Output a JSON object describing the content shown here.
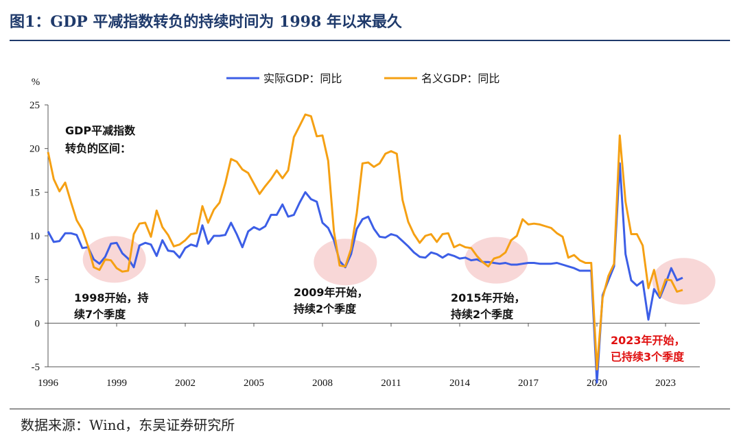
{
  "header": {
    "title": "图1：GDP 平减指数转负的持续时间为 1998 年以来最久"
  },
  "footer": {
    "source": "数据来源：Wind，东吴证券研究所"
  },
  "colors": {
    "real": "#3c5ee6",
    "nominal": "#f5a013",
    "highlight": "#f6c9c9",
    "title": "#1f3a6b",
    "red_text": "#e01010"
  },
  "chart_data": {
    "type": "line",
    "ylabel": "%",
    "ylim": [
      -5,
      25
    ],
    "yticks": [
      -5,
      0,
      5,
      10,
      15,
      20,
      25
    ],
    "xlim": [
      1996.0,
      2024.5
    ],
    "xticks": [
      1996,
      1999,
      2002,
      2005,
      2008,
      2011,
      2014,
      2017,
      2020,
      2023
    ],
    "xtick_labels": [
      "1996",
      "1999",
      "2002",
      "2005",
      "2008",
      "2011",
      "2014",
      "2017",
      "2020",
      "2023"
    ],
    "grid": false,
    "legend_position": "top-center",
    "series": [
      {
        "name": "实际GDP：同比",
        "color": "#3c5ee6",
        "x": [
          1996.0,
          1996.25,
          1996.5,
          1996.75,
          1997.0,
          1997.25,
          1997.5,
          1997.75,
          1998.0,
          1998.25,
          1998.5,
          1998.75,
          1999.0,
          1999.25,
          1999.5,
          1999.75,
          2000.0,
          2000.25,
          2000.5,
          2000.75,
          2001.0,
          2001.25,
          2001.5,
          2001.75,
          2002.0,
          2002.25,
          2002.5,
          2002.75,
          2003.0,
          2003.25,
          2003.5,
          2003.75,
          2004.0,
          2004.25,
          2004.5,
          2004.75,
          2005.0,
          2005.25,
          2005.5,
          2005.75,
          2006.0,
          2006.25,
          2006.5,
          2006.75,
          2007.0,
          2007.25,
          2007.5,
          2007.75,
          2008.0,
          2008.25,
          2008.5,
          2008.75,
          2009.0,
          2009.25,
          2009.5,
          2009.75,
          2010.0,
          2010.25,
          2010.5,
          2010.75,
          2011.0,
          2011.25,
          2011.5,
          2011.75,
          2012.0,
          2012.25,
          2012.5,
          2012.75,
          2013.0,
          2013.25,
          2013.5,
          2013.75,
          2014.0,
          2014.25,
          2014.5,
          2014.75,
          2015.0,
          2015.25,
          2015.5,
          2015.75,
          2016.0,
          2016.25,
          2016.5,
          2016.75,
          2017.0,
          2017.25,
          2017.5,
          2017.75,
          2018.0,
          2018.25,
          2018.5,
          2018.75,
          2019.0,
          2019.25,
          2019.5,
          2019.75,
          2020.0,
          2020.25,
          2020.5,
          2020.75,
          2021.0,
          2021.25,
          2021.5,
          2021.75,
          2022.0,
          2022.25,
          2022.5,
          2022.75,
          2023.0,
          2023.25,
          2023.5,
          2023.75
        ],
        "values": [
          10.5,
          9.3,
          9.4,
          10.3,
          10.3,
          10.1,
          8.6,
          8.7,
          7.3,
          6.8,
          7.6,
          9.1,
          9.2,
          8.0,
          7.4,
          6.4,
          8.9,
          9.2,
          9.0,
          7.7,
          9.5,
          8.3,
          8.2,
          7.5,
          8.6,
          9.0,
          8.8,
          11.2,
          9.1,
          10.0,
          10.0,
          10.1,
          11.5,
          10.2,
          8.7,
          10.5,
          11.0,
          10.7,
          11.1,
          12.4,
          12.4,
          13.6,
          12.2,
          12.4,
          13.8,
          15.0,
          14.2,
          13.9,
          11.5,
          10.9,
          9.5,
          7.1,
          6.4,
          7.9,
          10.8,
          11.9,
          12.2,
          10.8,
          9.9,
          9.8,
          10.2,
          10.0,
          9.4,
          8.8,
          8.1,
          7.6,
          7.5,
          8.1,
          7.9,
          7.5,
          7.9,
          7.7,
          7.4,
          7.5,
          7.2,
          7.3,
          7.0,
          7.0,
          6.9,
          6.8,
          6.9,
          6.7,
          6.7,
          6.8,
          6.9,
          6.9,
          6.8,
          6.8,
          6.8,
          6.9,
          6.7,
          6.5,
          6.3,
          6.0,
          6.0,
          6.0,
          -6.8,
          3.2,
          4.9,
          6.5,
          18.3,
          7.9,
          4.9,
          4.3,
          4.8,
          0.4,
          3.9,
          2.9,
          4.5,
          6.3,
          4.9,
          5.2
        ]
      },
      {
        "name": "名义GDP：同比",
        "color": "#f5a013",
        "x": [
          1996.0,
          1996.25,
          1996.5,
          1996.75,
          1997.0,
          1997.25,
          1997.5,
          1997.75,
          1998.0,
          1998.25,
          1998.5,
          1998.75,
          1999.0,
          1999.25,
          1999.5,
          1999.75,
          2000.0,
          2000.25,
          2000.5,
          2000.75,
          2001.0,
          2001.25,
          2001.5,
          2001.75,
          2002.0,
          2002.25,
          2002.5,
          2002.75,
          2003.0,
          2003.25,
          2003.5,
          2003.75,
          2004.0,
          2004.25,
          2004.5,
          2004.75,
          2005.0,
          2005.25,
          2005.5,
          2005.75,
          2006.0,
          2006.25,
          2006.5,
          2006.75,
          2007.0,
          2007.25,
          2007.5,
          2007.75,
          2008.0,
          2008.25,
          2008.5,
          2008.75,
          2009.0,
          2009.25,
          2009.5,
          2009.75,
          2010.0,
          2010.25,
          2010.5,
          2010.75,
          2011.0,
          2011.25,
          2011.5,
          2011.75,
          2012.0,
          2012.25,
          2012.5,
          2012.75,
          2013.0,
          2013.25,
          2013.5,
          2013.75,
          2014.0,
          2014.25,
          2014.5,
          2014.75,
          2015.0,
          2015.25,
          2015.5,
          2015.75,
          2016.0,
          2016.25,
          2016.5,
          2016.75,
          2017.0,
          2017.25,
          2017.5,
          2017.75,
          2018.0,
          2018.25,
          2018.5,
          2018.75,
          2019.0,
          2019.25,
          2019.5,
          2019.75,
          2020.0,
          2020.25,
          2020.5,
          2020.75,
          2021.0,
          2021.25,
          2021.5,
          2021.75,
          2022.0,
          2022.25,
          2022.5,
          2022.75,
          2023.0,
          2023.25,
          2023.5,
          2023.75
        ],
        "values": [
          19.6,
          16.5,
          15.1,
          16.1,
          13.9,
          11.8,
          10.7,
          8.8,
          6.4,
          6.1,
          7.3,
          7.2,
          6.3,
          5.9,
          6.0,
          10.2,
          11.4,
          11.5,
          9.9,
          12.9,
          11.0,
          10.1,
          8.8,
          9.0,
          9.5,
          10.2,
          10.3,
          13.4,
          11.5,
          13.0,
          13.8,
          16.0,
          18.8,
          18.5,
          17.6,
          17.2,
          16.0,
          14.8,
          15.7,
          16.5,
          17.5,
          16.6,
          17.5,
          21.3,
          22.6,
          23.9,
          23.7,
          21.4,
          21.5,
          18.6,
          10.5,
          6.6,
          6.5,
          8.5,
          12.6,
          18.3,
          18.4,
          17.9,
          18.3,
          19.4,
          19.7,
          19.4,
          14.1,
          11.6,
          10.2,
          9.2,
          10.0,
          10.2,
          9.3,
          10.2,
          10.3,
          8.7,
          9.0,
          8.7,
          8.6,
          7.7,
          7.0,
          6.5,
          7.4,
          7.6,
          8.1,
          9.5,
          10.0,
          11.9,
          11.3,
          11.4,
          11.3,
          11.1,
          10.9,
          10.3,
          9.9,
          7.5,
          7.8,
          7.2,
          6.9,
          6.9,
          -5.3,
          2.9,
          5.4,
          6.8,
          21.5,
          13.9,
          10.2,
          10.2,
          8.9,
          4.0,
          6.1,
          3.1,
          5.0,
          4.9,
          3.6,
          3.8
        ]
      }
    ],
    "annotations": {
      "box_label": "GDP平减指数\n转负的区间：",
      "periods": [
        {
          "label_line1": "1998开始，持",
          "label_line2": "续7个季度",
          "center_x": 1998.9,
          "center_y": 7.3,
          "color": "#111111"
        },
        {
          "label_line1": "2009年开始，",
          "label_line2": "持续2个季度",
          "center_x": 2009.0,
          "center_y": 7.0,
          "color": "#111111"
        },
        {
          "label_line1": "2015年开始，",
          "label_line2": "持续2个季度",
          "center_x": 2015.6,
          "center_y": 7.2,
          "color": "#111111"
        },
        {
          "label_line1": "2023年开始，",
          "label_line2": "已持续3个季度",
          "center_x": 2023.8,
          "center_y": 4.8,
          "color": "#e01010"
        }
      ]
    }
  }
}
